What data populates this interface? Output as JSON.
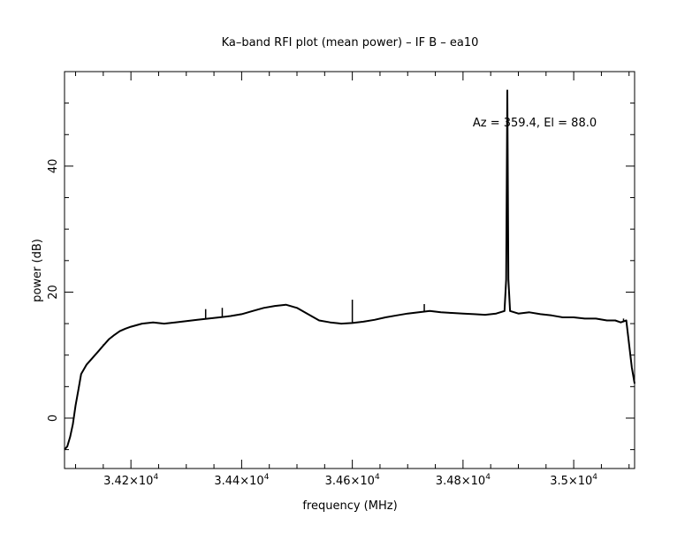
{
  "chart_data": {
    "type": "line",
    "title": "Ka–band RFI plot (mean power) – IF B – ea10",
    "xlabel": "frequency (MHz)",
    "ylabel": "power (dB)",
    "annotation": "Az = 359.4, El = 88.0",
    "xlim": [
      34080,
      35110
    ],
    "ylim": [
      -8,
      55
    ],
    "x_ticks": [
      {
        "value": 34200,
        "mantissa": "3.42",
        "exp": "4"
      },
      {
        "value": 34400,
        "mantissa": "3.44",
        "exp": "4"
      },
      {
        "value": 34600,
        "mantissa": "3.46",
        "exp": "4"
      },
      {
        "value": 34800,
        "mantissa": "3.48",
        "exp": "4"
      },
      {
        "value": 35000,
        "mantissa": "3.5",
        "exp": "4"
      }
    ],
    "y_ticks": [
      {
        "value": 0,
        "label": "0"
      },
      {
        "value": 20,
        "label": "20"
      },
      {
        "value": 40,
        "label": "40"
      }
    ],
    "series": [
      {
        "x": [
          34080,
          34085,
          34090,
          34095,
          34100,
          34105,
          34110,
          34120,
          34130,
          34140,
          34150,
          34160,
          34170,
          34180,
          34190,
          34200,
          34220,
          34240,
          34260,
          34280,
          34300,
          34320,
          34340,
          34360,
          34380,
          34400,
          34420,
          34440,
          34460,
          34480,
          34500,
          34520,
          34540,
          34560,
          34580,
          34600,
          34620,
          34640,
          34660,
          34680,
          34700,
          34720,
          34740,
          34760,
          34780,
          34800,
          34820,
          34840,
          34860,
          34875,
          34878,
          34880,
          34882,
          34885,
          34900,
          34920,
          34940,
          34960,
          34980,
          35000,
          35020,
          35040,
          35060,
          35075,
          35085,
          35095,
          35105,
          35110
        ],
        "y": [
          -5,
          -4.5,
          -3,
          -1,
          2,
          4.5,
          7,
          8.5,
          9.5,
          10.5,
          11.5,
          12.5,
          13.2,
          13.8,
          14.2,
          14.5,
          15,
          15.2,
          15,
          15.2,
          15.4,
          15.6,
          15.8,
          16,
          16.2,
          16.5,
          17,
          17.5,
          17.8,
          18,
          17.5,
          16.5,
          15.5,
          15.2,
          15,
          15.1,
          15.3,
          15.6,
          16,
          16.3,
          16.6,
          16.8,
          17,
          16.8,
          16.7,
          16.6,
          16.5,
          16.4,
          16.6,
          17,
          22,
          52,
          22,
          17,
          16.6,
          16.8,
          16.5,
          16.3,
          16,
          16,
          15.8,
          15.8,
          15.5,
          15.5,
          15.2,
          15.5,
          8,
          5.5
        ],
        "spikes": [
          {
            "x": 34150,
            "y": 11.7
          },
          {
            "x": 34335,
            "y": 17.3
          },
          {
            "x": 34365,
            "y": 17.5
          },
          {
            "x": 34600,
            "y": 18.8
          },
          {
            "x": 34730,
            "y": 18.1
          },
          {
            "x": 34880,
            "y": 52
          },
          {
            "x": 35090,
            "y": 15.8
          }
        ]
      }
    ],
    "grid": false,
    "legend": "none"
  }
}
